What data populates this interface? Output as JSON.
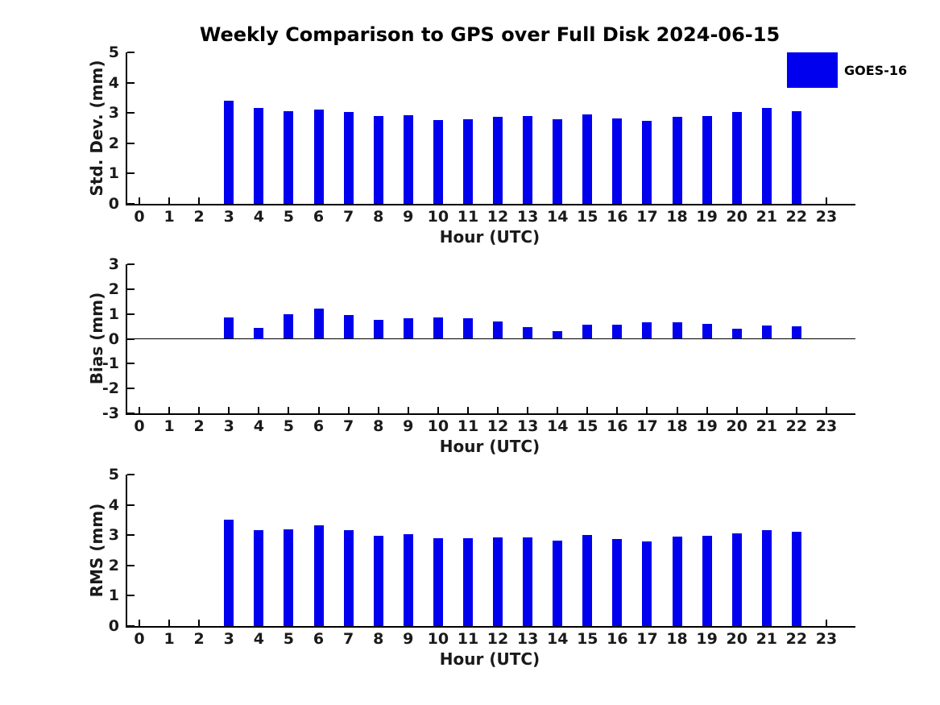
{
  "title": "Weekly Comparison to GPS over Full Disk 2024-06-15",
  "legend": {
    "label": "GOES-16",
    "color": "#0000ee"
  },
  "chart_data": [
    {
      "type": "bar",
      "name": "std-dev",
      "ylabel": "Std. Dev. (mm)",
      "xlabel": "Hour (UTC)",
      "ylim": [
        0,
        5
      ],
      "yticks": [
        0,
        1,
        2,
        3,
        4,
        5
      ],
      "zero_line": false,
      "grid": false,
      "categories": [
        "0",
        "1",
        "2",
        "3",
        "4",
        "5",
        "6",
        "7",
        "8",
        "9",
        "10",
        "11",
        "12",
        "13",
        "14",
        "15",
        "16",
        "17",
        "18",
        "19",
        "20",
        "21",
        "22",
        "23"
      ],
      "series": [
        {
          "name": "GOES-16",
          "color": "#0000ee",
          "values": [
            null,
            null,
            null,
            3.4,
            3.16,
            3.05,
            3.12,
            3.02,
            2.89,
            2.92,
            2.76,
            2.79,
            2.86,
            2.89,
            2.78,
            2.94,
            2.82,
            2.73,
            2.87,
            2.89,
            3.03,
            3.16,
            3.05,
            null
          ]
        }
      ]
    },
    {
      "type": "bar",
      "name": "bias",
      "ylabel": "Bias (mm)",
      "xlabel": "Hour (UTC)",
      "ylim": [
        -3,
        3
      ],
      "yticks": [
        3,
        2,
        1,
        0,
        -1,
        -2,
        -3
      ],
      "zero_line": true,
      "grid": false,
      "categories": [
        "0",
        "1",
        "2",
        "3",
        "4",
        "5",
        "6",
        "7",
        "8",
        "9",
        "10",
        "11",
        "12",
        "13",
        "14",
        "15",
        "16",
        "17",
        "18",
        "19",
        "20",
        "21",
        "22",
        "23"
      ],
      "series": [
        {
          "name": "GOES-16",
          "color": "#0000ee",
          "values": [
            null,
            null,
            null,
            0.87,
            0.45,
            0.98,
            1.21,
            0.95,
            0.77,
            0.84,
            0.87,
            0.84,
            0.7,
            0.48,
            0.32,
            0.58,
            0.58,
            0.67,
            0.67,
            0.61,
            0.41,
            0.53,
            0.49,
            null
          ]
        }
      ]
    },
    {
      "type": "bar",
      "name": "rms",
      "ylabel": "RMS (mm)",
      "xlabel": "Hour (UTC)",
      "ylim": [
        0,
        5
      ],
      "yticks": [
        0,
        1,
        2,
        3,
        4,
        5
      ],
      "zero_line": false,
      "grid": false,
      "categories": [
        "0",
        "1",
        "2",
        "3",
        "4",
        "5",
        "6",
        "7",
        "8",
        "9",
        "10",
        "11",
        "12",
        "13",
        "14",
        "15",
        "16",
        "17",
        "18",
        "19",
        "20",
        "21",
        "22",
        "23"
      ],
      "series": [
        {
          "name": "GOES-16",
          "color": "#0000ee",
          "values": [
            null,
            null,
            null,
            3.52,
            3.17,
            3.19,
            3.33,
            3.17,
            2.99,
            3.04,
            2.91,
            2.91,
            2.93,
            2.93,
            2.81,
            3.01,
            2.87,
            2.8,
            2.95,
            2.97,
            3.06,
            3.17,
            3.1,
            null
          ]
        }
      ]
    }
  ]
}
